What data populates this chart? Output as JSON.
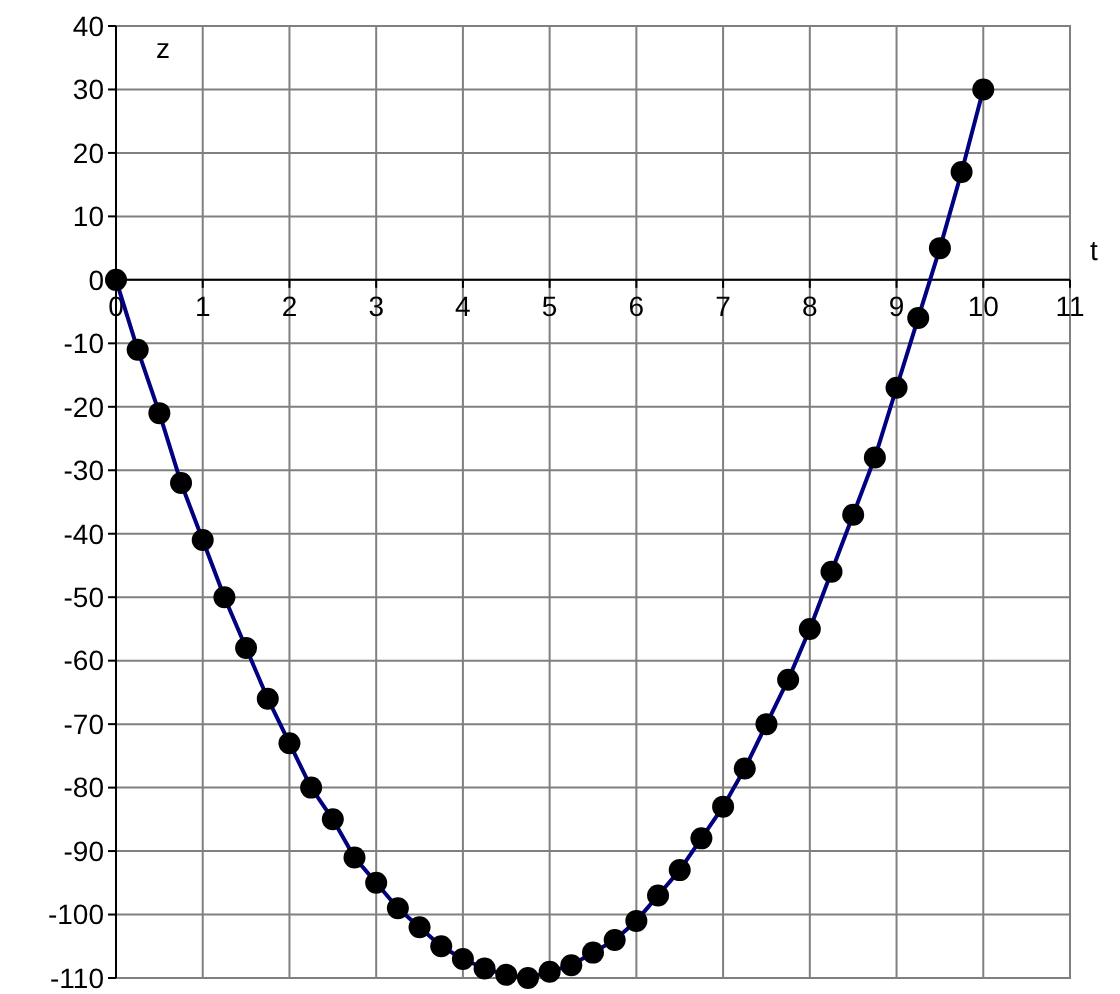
{
  "chart_data": {
    "type": "line",
    "xlabel": "t",
    "ylabel": "z",
    "x": [
      0,
      0.25,
      0.5,
      0.75,
      1,
      1.25,
      1.5,
      1.75,
      2,
      2.25,
      2.5,
      2.75,
      3,
      3.25,
      3.5,
      3.75,
      4,
      4.25,
      4.5,
      4.75,
      5,
      5.25,
      5.5,
      5.75,
      6,
      6.25,
      6.5,
      6.75,
      7,
      7.25,
      7.5,
      7.75,
      8,
      8.25,
      8.5,
      8.75,
      9,
      9.25,
      9.5,
      9.75,
      10
    ],
    "series": [
      {
        "color": "#000080",
        "values": [
          0,
          -11,
          -21,
          -32,
          -41,
          -50,
          -58,
          -66,
          -73,
          -80,
          -85,
          -91,
          -95,
          -99,
          -102,
          -105,
          -107,
          -108.5,
          -109.5,
          -110,
          -109,
          -108,
          -106,
          -104,
          -101,
          -97,
          -93,
          -88,
          -83,
          -77,
          -70,
          -63,
          -55,
          -46,
          -37,
          -28,
          -17,
          -6,
          5,
          17,
          30
        ]
      }
    ],
    "xlim": [
      0,
      11
    ],
    "xticks": [
      0,
      1,
      2,
      3,
      4,
      5,
      6,
      7,
      8,
      9,
      10,
      11
    ],
    "ylim": [
      -110,
      40
    ],
    "yticks": [
      -110,
      -100,
      -90,
      -80,
      -70,
      -60,
      -50,
      -40,
      -30,
      -20,
      -10,
      0,
      10,
      20,
      30,
      40
    ],
    "grid": true,
    "marker": "circle",
    "line_style": "solid"
  }
}
